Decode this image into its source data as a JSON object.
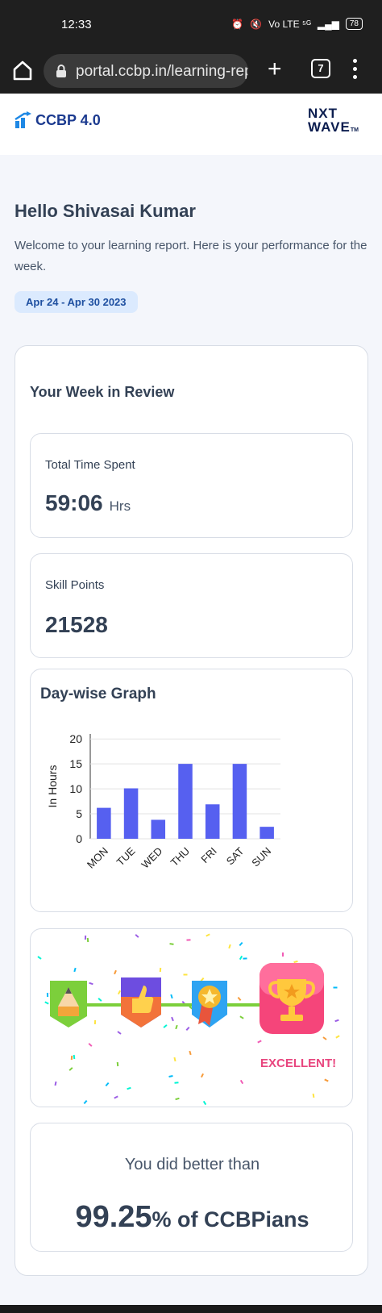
{
  "status_bar": {
    "time": "12:33",
    "network": "Vo LTE ⁵ᴳ",
    "battery": "78"
  },
  "browser": {
    "url": "portal.ccbp.in/learning-rep",
    "tab_count": "7",
    "new_tab_label": "+"
  },
  "header": {
    "logo_text": "CCBP 4.0",
    "brand_line1": "NXT",
    "brand_line2": "WAVE",
    "brand_tm": "TM"
  },
  "greeting": "Hello Shivasai Kumar",
  "welcome_text": "Welcome to your learning report. Here is your performance for the week.",
  "date_range": "Apr 24 - Apr 30 2023",
  "review": {
    "title": "Your Week in Review",
    "time_spent": {
      "label": "Total Time Spent",
      "value": "59:06",
      "unit": "Hrs"
    },
    "skill_points": {
      "label": "Skill Points",
      "value": "21528"
    },
    "graph_title": "Day-wise Graph"
  },
  "chart_data": {
    "type": "bar",
    "categories": [
      "MON",
      "TUE",
      "WED",
      "THU",
      "FRI",
      "SAT",
      "SUN"
    ],
    "values": [
      6.2,
      10.1,
      3.8,
      15.0,
      6.9,
      15.0,
      2.4
    ],
    "ylabel": "In Hours",
    "yticks": [
      0,
      5,
      10,
      15,
      20
    ],
    "ylim": [
      0,
      21
    ],
    "color": "#5660f0"
  },
  "achievement": {
    "level": "EXCELLENT!",
    "icons": [
      "pencil-badge-icon",
      "thumbs-up-badge-icon",
      "medal-badge-icon",
      "trophy-badge-icon"
    ]
  },
  "comparison": {
    "intro": "You did better than",
    "percent": "99.25",
    "suffix": "% of CCBPians"
  }
}
